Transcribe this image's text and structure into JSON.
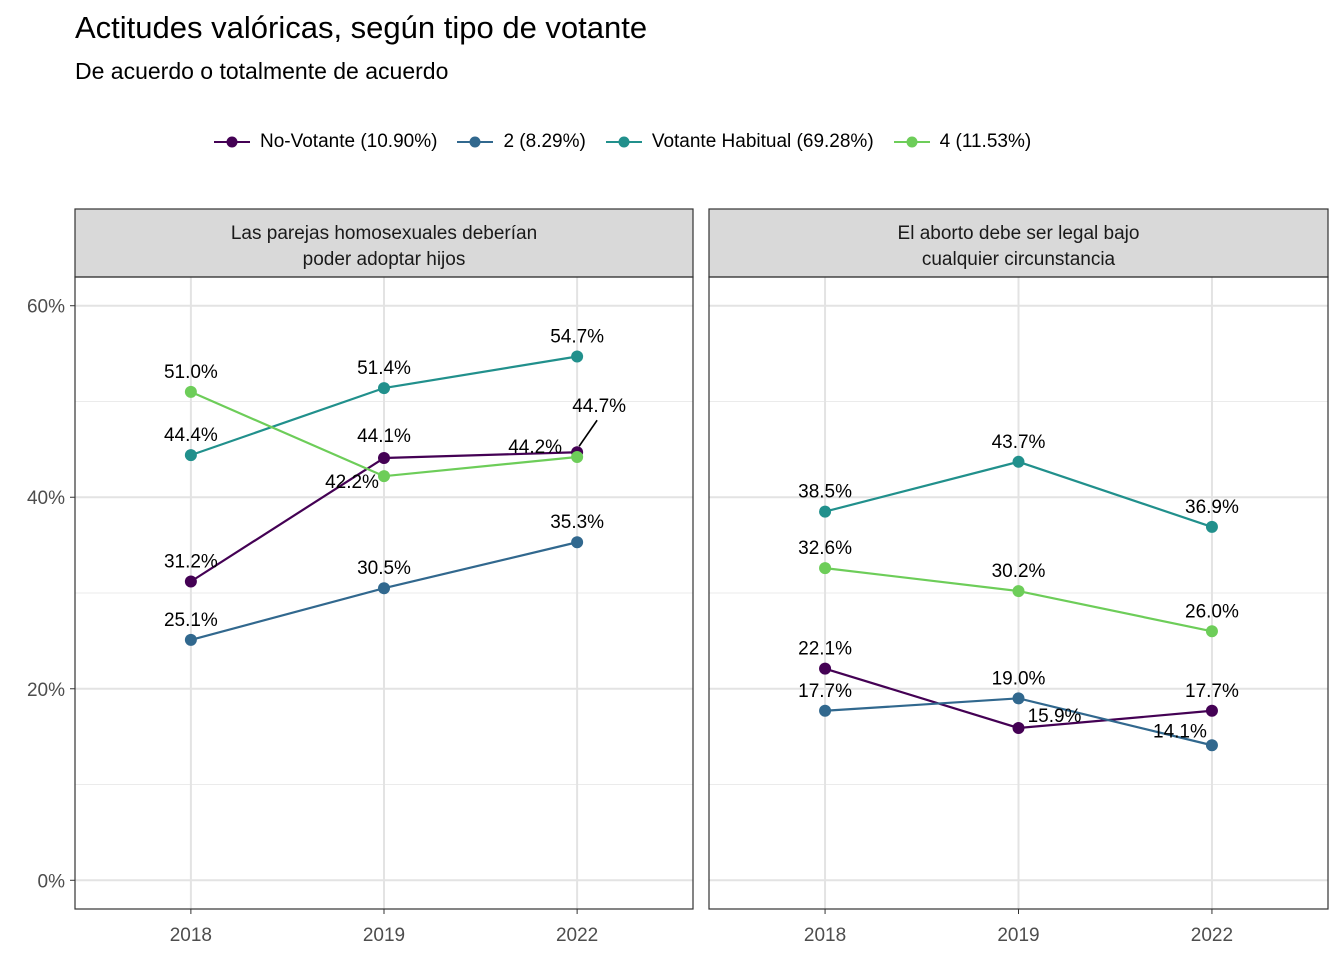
{
  "chart_data": {
    "type": "line",
    "title": "Actitudes valóricas, según tipo de votante",
    "subtitle": "De acuerdo o totalmente de acuerdo",
    "categories": [
      "2018",
      "2019",
      "2022"
    ],
    "y_ticks": [
      "0%",
      "20%",
      "40%",
      "60%"
    ],
    "y_tick_values": [
      0,
      20,
      40,
      60
    ],
    "ylim": [
      -3,
      63
    ],
    "legend_position": "top",
    "series_meta": [
      {
        "name": "No-Votante (10.90%)",
        "color": "#440154"
      },
      {
        "name": "2 (8.29%)",
        "color": "#31688E"
      },
      {
        "name": "Votante Habitual (69.28%)",
        "color": "#21908C"
      },
      {
        "name": "4 (11.53%)",
        "color": "#6DCD59"
      }
    ],
    "panels": [
      {
        "title": "Las parejas homosexuales deberían poder adoptar hijos",
        "title_lines": [
          "Las parejas homosexuales deberían",
          "poder adoptar hijos"
        ],
        "series": [
          {
            "name": "No-Votante (10.90%)",
            "values": [
              31.2,
              44.1,
              44.7
            ],
            "labels": [
              "31.2%",
              "44.1%",
              "44.7%"
            ]
          },
          {
            "name": "2 (8.29%)",
            "values": [
              25.1,
              30.5,
              35.3
            ],
            "labels": [
              "25.1%",
              "30.5%",
              "35.3%"
            ]
          },
          {
            "name": "Votante Habitual (69.28%)",
            "values": [
              44.4,
              51.4,
              54.7
            ],
            "labels": [
              "44.4%",
              "51.4%",
              "54.7%"
            ]
          },
          {
            "name": "4 (11.53%)",
            "values": [
              51.0,
              42.2,
              44.2
            ],
            "labels": [
              "51.0%",
              "42.2%",
              "44.2%"
            ]
          }
        ]
      },
      {
        "title": "El aborto debe ser legal bajo cualquier circunstancia",
        "title_lines": [
          "El aborto debe ser legal bajo",
          "cualquier circunstancia"
        ],
        "series": [
          {
            "name": "No-Votante (10.90%)",
            "values": [
              22.1,
              15.9,
              17.7
            ],
            "labels": [
              "22.1%",
              "15.9%",
              "17.7%"
            ]
          },
          {
            "name": "2 (8.29%)",
            "values": [
              17.7,
              19.0,
              14.1
            ],
            "labels": [
              "17.7%",
              "19.0%",
              "14.1%"
            ]
          },
          {
            "name": "Votante Habitual (69.28%)",
            "values": [
              38.5,
              43.7,
              36.9
            ],
            "labels": [
              "38.5%",
              "43.7%",
              "36.9%"
            ]
          },
          {
            "name": "4 (11.53%)",
            "values": [
              32.6,
              30.2,
              26.0
            ],
            "labels": [
              "32.6%",
              "30.2%",
              "26.0%"
            ]
          }
        ]
      }
    ]
  }
}
